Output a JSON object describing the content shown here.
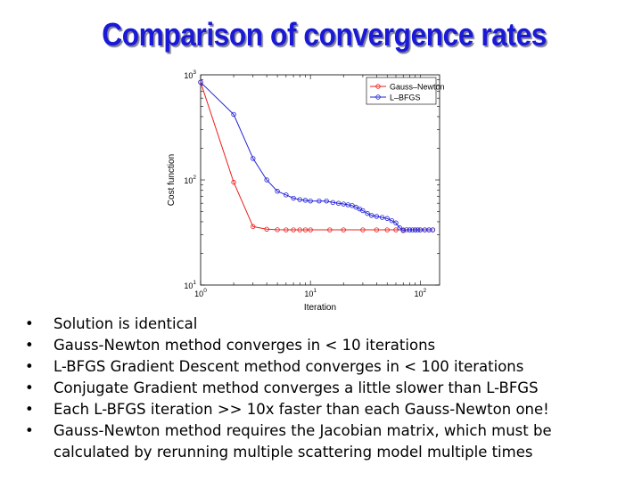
{
  "title": "Comparison of convergence rates",
  "bullets": [
    "Solution is identical",
    "Gauss-Newton method converges in < 10 iterations",
    "L-BFGS Gradient Descent method converges in < 100 iterations",
    "Conjugate Gradient method converges a little slower than L-BFGS",
    "Each L-BFGS iteration >> 10x faster than each Gauss-Newton one!",
    "Gauss-Newton method requires the Jacobian matrix, which must be calculated by rerunning multiple scattering model multiple times"
  ],
  "bullet_glyph": "•",
  "chart_data": {
    "type": "line",
    "xlabel": "Iteration",
    "ylabel": "Cost function",
    "xscale": "log",
    "yscale": "log",
    "xlim": [
      1,
      150
    ],
    "ylim": [
      10,
      1000
    ],
    "xticks": [
      {
        "base": "10",
        "exp": "0"
      },
      {
        "base": "10",
        "exp": "1"
      },
      {
        "base": "10",
        "exp": "2"
      }
    ],
    "yticks": [
      {
        "base": "10",
        "exp": "1"
      },
      {
        "base": "10",
        "exp": "2"
      },
      {
        "base": "10",
        "exp": "3"
      }
    ],
    "legend_position": "top-right",
    "series": [
      {
        "name": "Gauss–Newton",
        "color": "#e8201c",
        "x": [
          1,
          2,
          3,
          4,
          5,
          6,
          7,
          8,
          9,
          10,
          15,
          20,
          30,
          40,
          50,
          60,
          70,
          80,
          90,
          100,
          110,
          120,
          130
        ],
        "y": [
          850,
          95,
          36,
          34,
          33.6,
          33.5,
          33.5,
          33.5,
          33.5,
          33.5,
          33.5,
          33.5,
          33.5,
          33.5,
          33.5,
          33.5,
          33.5,
          33.5,
          33.5,
          33.5,
          33.5,
          33.5,
          33.5
        ]
      },
      {
        "name": "L–BFGS",
        "color": "#2020d8",
        "x": [
          1,
          2,
          3,
          4,
          5,
          6,
          7,
          8,
          9,
          10,
          12,
          14,
          16,
          18,
          20,
          22,
          24,
          26,
          28,
          30,
          33,
          36,
          40,
          45,
          50,
          55,
          60,
          65,
          70,
          75,
          80,
          85,
          90,
          95,
          100,
          110,
          120,
          130
        ],
        "y": [
          850,
          420,
          160,
          100,
          78,
          72,
          67,
          65,
          64,
          63,
          63,
          63,
          61,
          60,
          59,
          58,
          57,
          55,
          53,
          51,
          48,
          46,
          45,
          44,
          43,
          41,
          39,
          35,
          33,
          33.6,
          33.5,
          33.5,
          33.5,
          33.5,
          33.5,
          33.5,
          33.5,
          33.5
        ]
      }
    ]
  }
}
